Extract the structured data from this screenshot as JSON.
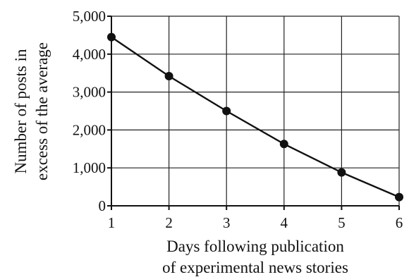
{
  "chart_data": {
    "type": "line",
    "x": [
      1,
      2,
      3,
      4,
      5,
      6
    ],
    "series": [
      {
        "values": [
          4450,
          3420,
          2500,
          1630,
          880,
          230
        ]
      }
    ],
    "title": "",
    "xlabel_lines": [
      "Days following publication",
      "of experimental news stories"
    ],
    "ylabel_lines": [
      "Number of posts in",
      "excess of the average"
    ],
    "xlim": [
      1,
      6
    ],
    "ylim": [
      0,
      5000
    ],
    "xticks": [
      1,
      2,
      3,
      4,
      5,
      6
    ],
    "xtick_labels": [
      "1",
      "2",
      "3",
      "4",
      "5",
      "6"
    ],
    "yticks": [
      0,
      1000,
      2000,
      3000,
      4000,
      5000
    ],
    "ytick_labels": [
      "0",
      "1,000",
      "2,000",
      "3,000",
      "4,000",
      "5,000"
    ],
    "grid": true,
    "line_color": "#111111",
    "marker": "filled-circle"
  }
}
